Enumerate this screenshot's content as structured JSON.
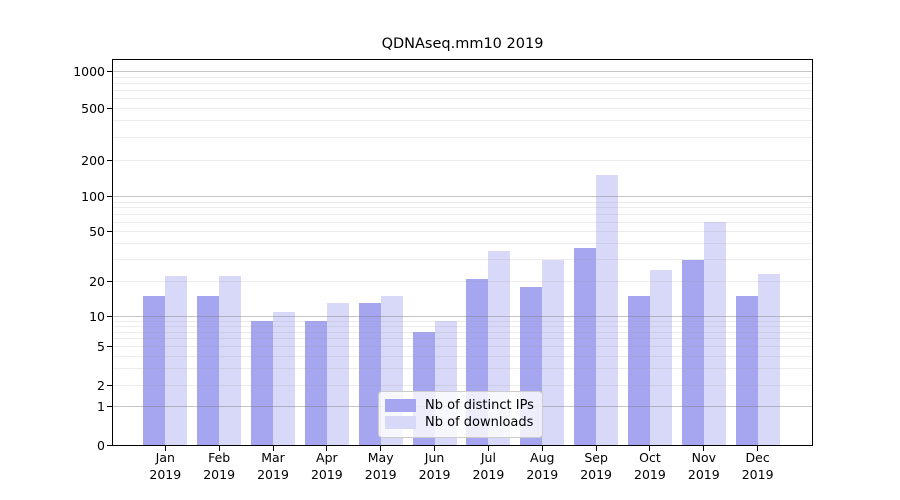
{
  "title": "QDNAseq.mm10 2019",
  "chart_data": {
    "type": "bar",
    "title": "QDNAseq.mm10 2019",
    "categories": [
      "Jan 2019",
      "Feb 2019",
      "Mar 2019",
      "Apr 2019",
      "May 2019",
      "Jun 2019",
      "Jul 2019",
      "Aug 2019",
      "Sep 2019",
      "Oct 2019",
      "Nov 2019",
      "Dec 2019"
    ],
    "series": [
      {
        "name": "Nb of distinct IPs",
        "key": "distinct-ips",
        "color": "#a6a6f0",
        "values": [
          15,
          15,
          9,
          9,
          13,
          7,
          21,
          18,
          37,
          15,
          30,
          15
        ]
      },
      {
        "name": "Nb of downloads",
        "key": "downloads",
        "color": "#d8d8f8",
        "values": [
          22,
          22,
          11,
          13,
          15,
          9,
          35,
          30,
          150,
          25,
          60,
          23
        ]
      }
    ],
    "xlabel": "",
    "ylabel": "",
    "yscale": "symlog",
    "y_ticks": [
      0,
      1,
      2,
      5,
      10,
      20,
      50,
      100,
      200,
      500,
      1000
    ],
    "ylim": [
      0,
      1250
    ],
    "grid": true,
    "legend_position": "lower center"
  }
}
